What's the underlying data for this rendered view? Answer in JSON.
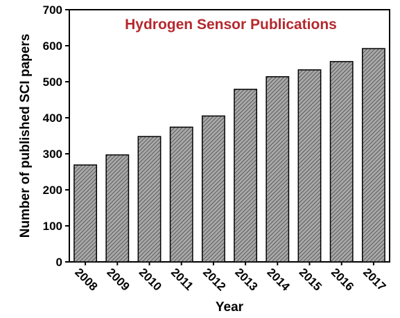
{
  "chart_data": {
    "type": "bar",
    "title": "Hydrogen Sensor Publications",
    "x_label": "Year",
    "y_label": "Number of published SCI papers",
    "categories": [
      "2008",
      "2009",
      "2010",
      "2011",
      "2012",
      "2013",
      "2014",
      "2015",
      "2016",
      "2017"
    ],
    "values": [
      269,
      297,
      348,
      374,
      405,
      479,
      514,
      533,
      556,
      592
    ],
    "color": "#a8a8a8",
    "title_color": "#b5282e",
    "ylim": [
      0,
      700
    ],
    "yticks": [
      0,
      100,
      200,
      300,
      400,
      500,
      600,
      700
    ]
  }
}
